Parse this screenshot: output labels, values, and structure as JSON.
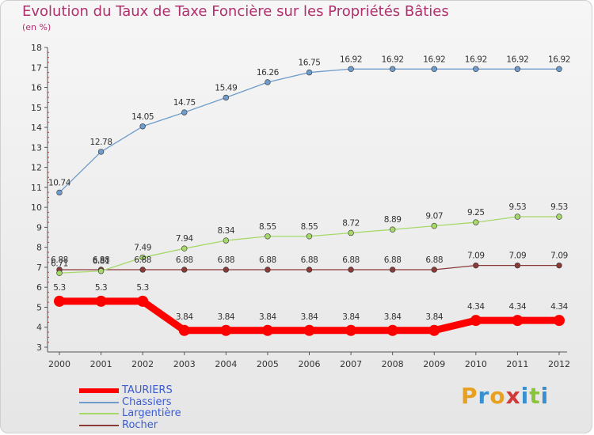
{
  "chart_data": {
    "type": "line",
    "title": "Evolution du Taux de Taxe Foncière sur les Propriétés Bâties",
    "subtitle": "(en %)",
    "xlabel": "",
    "ylabel": "(en %)",
    "ylim": [
      3,
      18
    ],
    "yticks": [
      3,
      4,
      5,
      6,
      7,
      8,
      9,
      10,
      11,
      12,
      13,
      14,
      15,
      16,
      17,
      18
    ],
    "categories": [
      "2000",
      "2001",
      "2002",
      "2003",
      "2004",
      "2005",
      "2006",
      "2007",
      "2008",
      "2009",
      "2010",
      "2011",
      "2012"
    ],
    "series": [
      {
        "name": "TAURIERS",
        "color": "#ff0000",
        "values": [
          5.3,
          5.3,
          5.3,
          3.84,
          3.84,
          3.84,
          3.84,
          3.84,
          3.84,
          3.84,
          4.34,
          4.34,
          4.34
        ],
        "labels": [
          "5.3",
          "5.3",
          "5.3",
          "3.84",
          "3.84",
          "3.84",
          "3.84",
          "3.84",
          "3.84",
          "3.84",
          "4.34",
          "4.34",
          "4.34"
        ]
      },
      {
        "name": "Chassiers",
        "color": "#6f9ccb",
        "values": [
          10.74,
          12.78,
          14.05,
          14.75,
          15.49,
          16.26,
          16.75,
          16.92,
          16.92,
          16.92,
          16.92,
          16.92,
          16.92
        ],
        "labels": [
          "10.74",
          "12.78",
          "14.05",
          "14.75",
          "15.49",
          "16.26",
          "16.75",
          "16.92",
          "16.92",
          "16.92",
          "16.92",
          "16.92",
          "16.92"
        ]
      },
      {
        "name": "Largentière",
        "color": "#a6d96a",
        "values": [
          6.71,
          6.81,
          7.49,
          7.94,
          8.34,
          8.55,
          8.55,
          8.72,
          8.89,
          9.07,
          9.25,
          9.53,
          9.53
        ],
        "labels": [
          "6.71",
          "6.81",
          "7.49",
          "7.94",
          "8.34",
          "8.55",
          "8.55",
          "8.72",
          "8.89",
          "9.07",
          "9.25",
          "9.53",
          "9.53"
        ]
      },
      {
        "name": "Rocher",
        "color": "#8b3a3a",
        "values": [
          6.88,
          6.88,
          6.88,
          6.88,
          6.88,
          6.88,
          6.88,
          6.88,
          6.88,
          6.88,
          7.09,
          7.09,
          7.09
        ],
        "labels": [
          "6.88",
          "6.88",
          "6.88",
          "6.88",
          "6.88",
          "6.88",
          "6.88",
          "6.88",
          "6.88",
          "6.88",
          "7.09",
          "7.09",
          "7.09"
        ]
      }
    ],
    "legend": [
      "TAURIERS",
      "Chassiers",
      "Largentière",
      "Rocher"
    ],
    "grid": false
  },
  "brand": {
    "letters": [
      "P",
      "r",
      "o",
      "x",
      "i",
      "t",
      "i"
    ],
    "colors": [
      "#e8a020",
      "#3a8fd0",
      "#e8a020",
      "#d03a3a",
      "#3a8fd0",
      "#8ac43a",
      "#3a8fd0"
    ]
  }
}
